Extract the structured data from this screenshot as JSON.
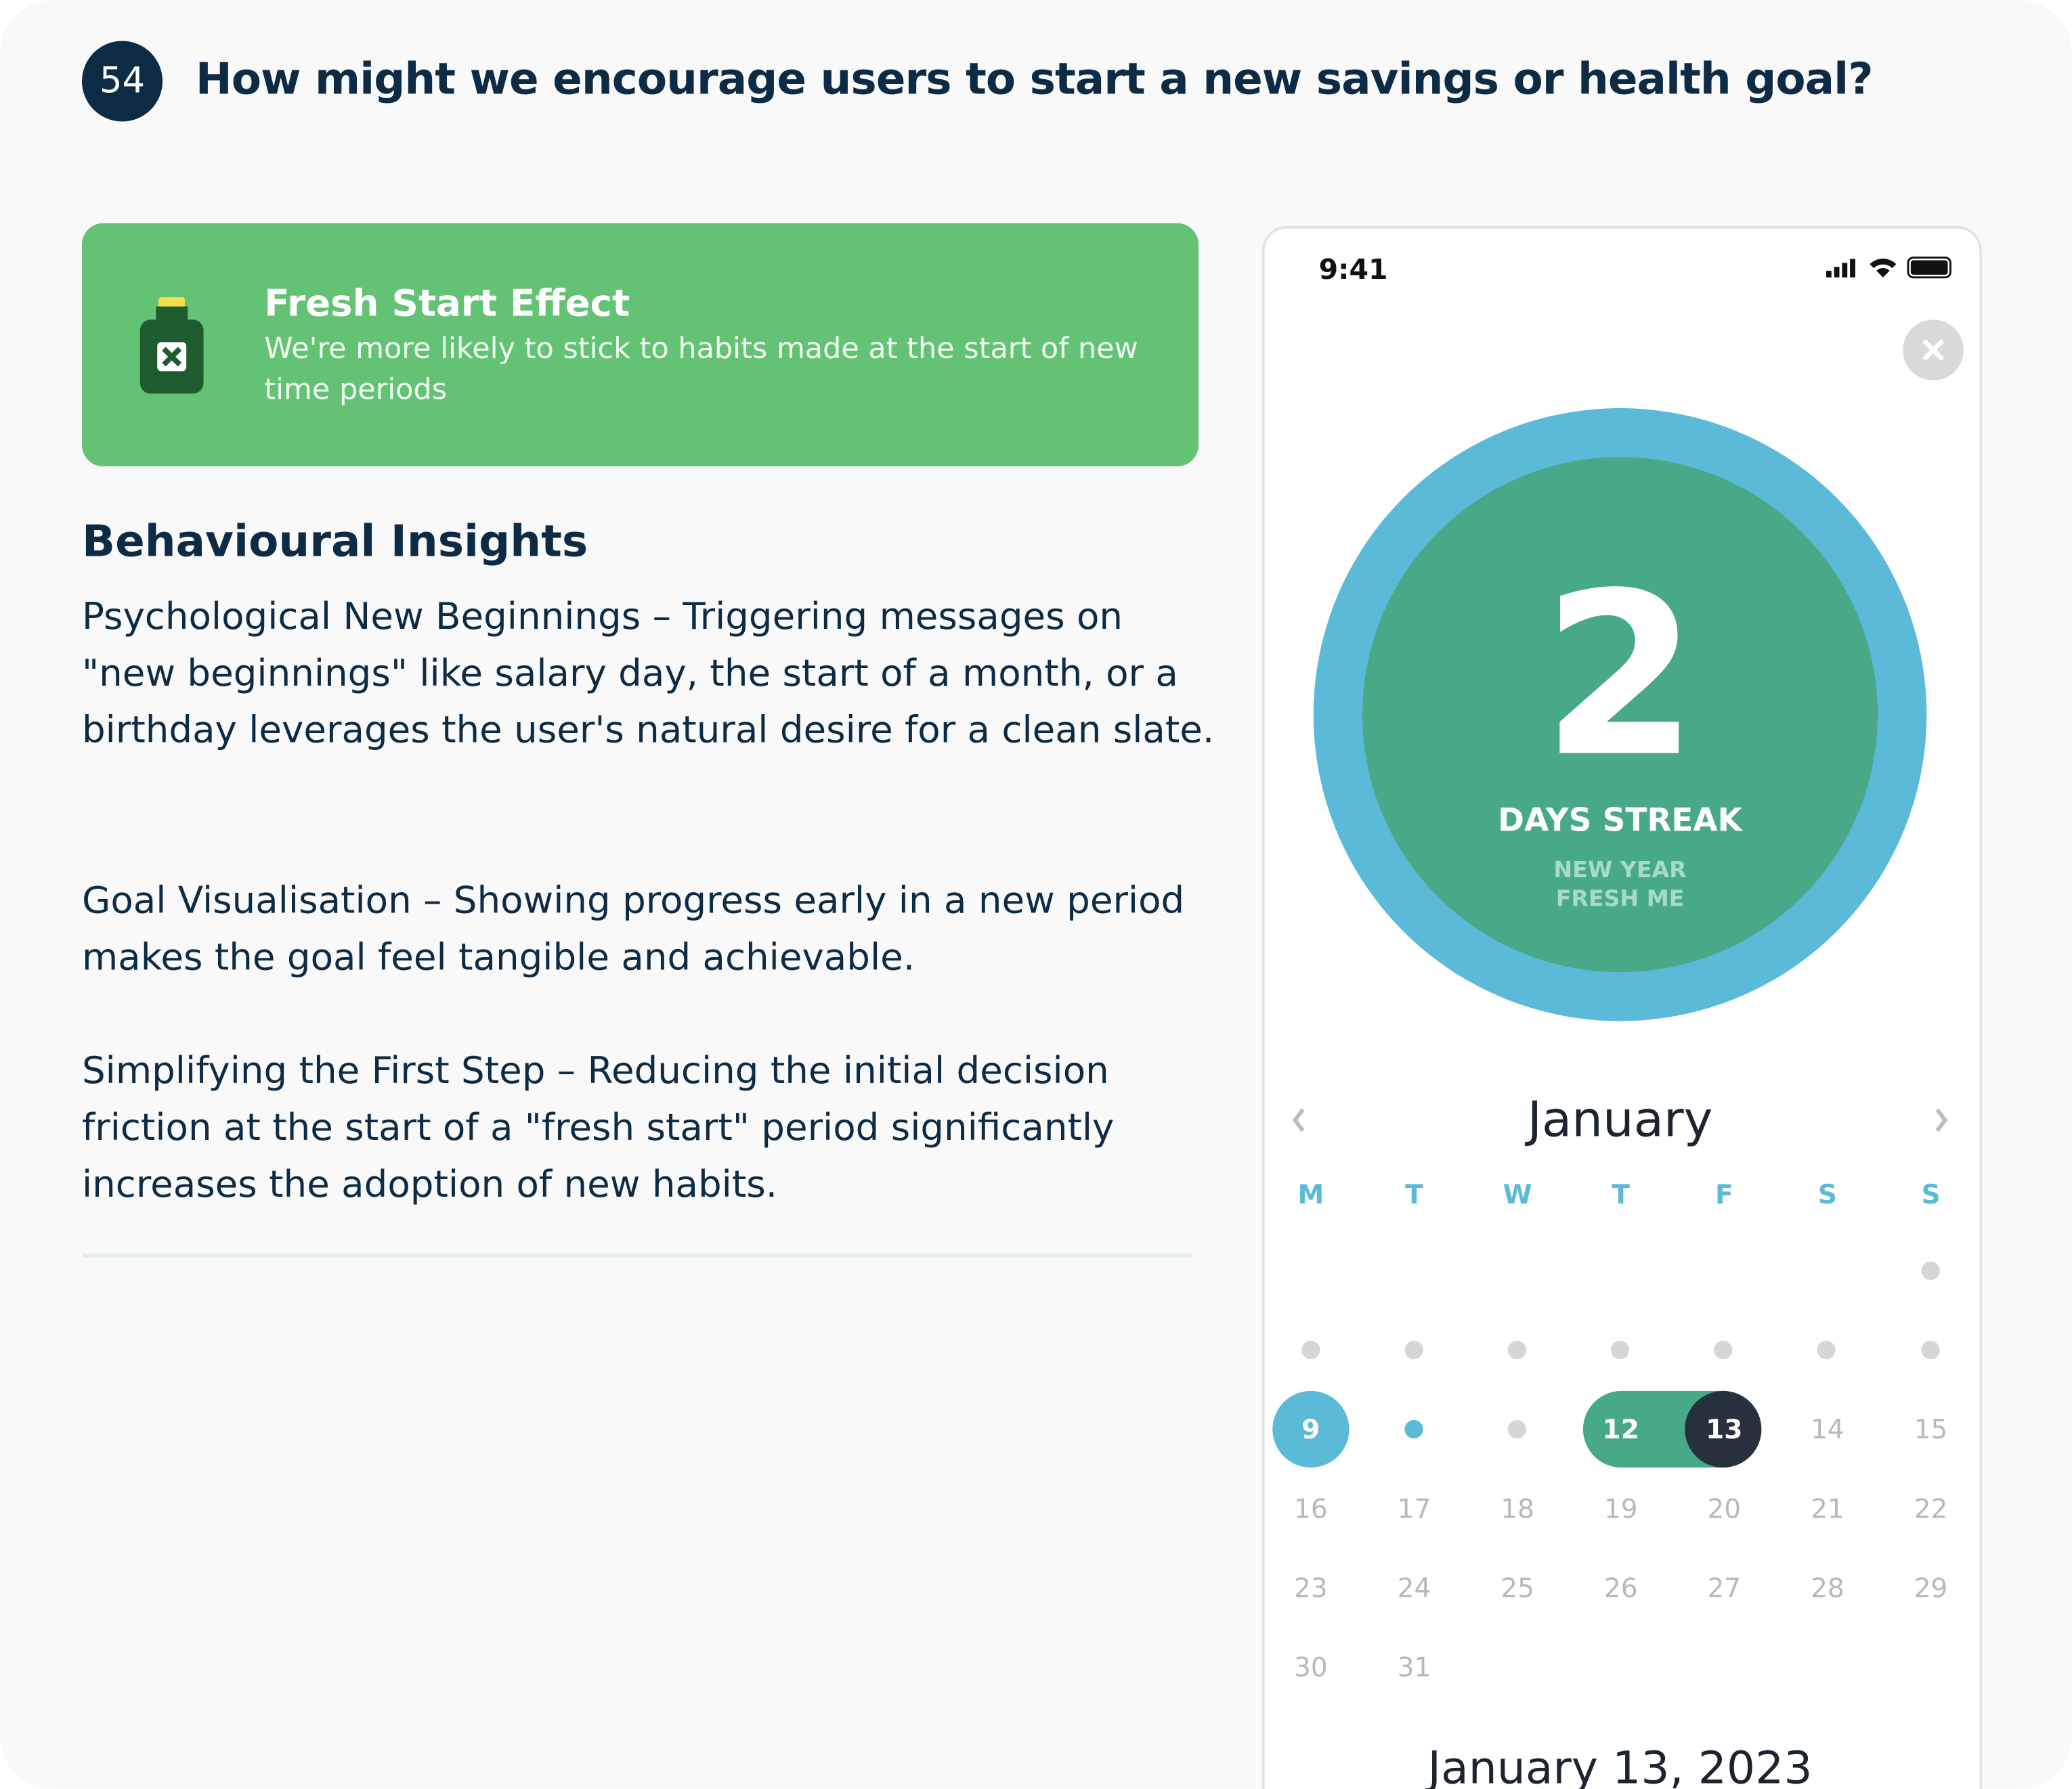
{
  "badge": "54",
  "title": "How might we encourage users to start a new savings or health goal?",
  "card": {
    "title": "Fresh Start Effect",
    "text": "We're more likely to stick to habits made at the start of new time periods"
  },
  "section": {
    "heading": "Behavioural Insights",
    "paragraphs": [
      "Psychological New Beginnings – Triggering messages on \"new beginnings\" like salary day, the start of a month, or a birthday leverages the user's natural desire for a clean slate.",
      "Goal Visualisation – Showing progress early in a new period makes the goal feel tangible and achievable.",
      "Simplifying the First Step – Reducing the initial decision friction at the start of a \"fresh start\" period significantly increases the adoption of new habits."
    ]
  },
  "phone": {
    "time": "9:41",
    "streak": {
      "number": "2",
      "label": "DAYS STREAK",
      "line1": "NEW YEAR",
      "line2": "FRESH ME"
    },
    "calendar": {
      "month": "January",
      "weekdays": [
        "M",
        "T",
        "W",
        "T",
        "F",
        "S",
        "S"
      ],
      "dates": [
        9,
        12,
        13,
        14,
        15,
        16,
        17,
        18,
        19,
        20,
        21,
        22,
        23,
        24,
        25,
        26,
        27,
        28,
        29,
        30,
        31
      ]
    },
    "footer": "January 13, 2023"
  }
}
